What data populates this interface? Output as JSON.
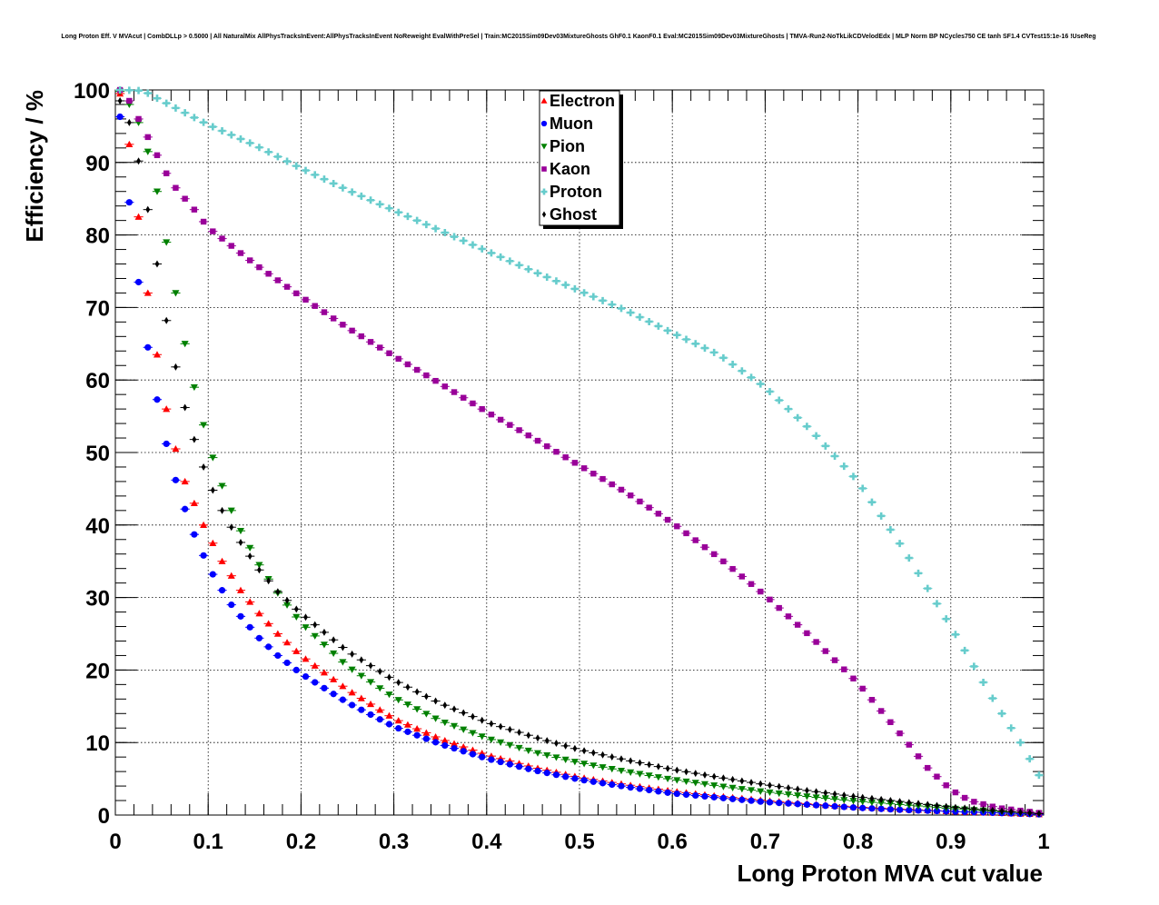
{
  "chart_data": {
    "type": "scatter",
    "title": "Long Proton Eff. V MVAcut | CombDLLp > 0.5000 | All NaturalMix AllPhysTracksInEvent:AllPhysTracksInEvent NoReweight EvalWithPreSel | Train:MC2015Sim09Dev03MixtureGhosts GhF0.1 KaonF0.1 Eval:MC2015Sim09Dev03MixtureGhosts | TMVA-Run2-NoTkLikCDVelodEdx | MLP Norm BP NCycles750 CE tanh SF1.4 CVTest15:1e-16 !UseReg",
    "xlabel": "Long Proton MVA cut value",
    "ylabel": "Efficiency / %",
    "xlim": [
      0,
      1
    ],
    "ylim": [
      0,
      100
    ],
    "grid": true,
    "legend_position": "top-center",
    "x_ticks": [
      "0",
      "0.1",
      "0.2",
      "0.3",
      "0.4",
      "0.5",
      "0.6",
      "0.7",
      "0.8",
      "0.9",
      "1"
    ],
    "y_ticks": [
      "0",
      "10",
      "20",
      "30",
      "40",
      "50",
      "60",
      "70",
      "80",
      "90",
      "100"
    ],
    "x_step": 0.01,
    "series": [
      {
        "name": "Electron",
        "color": "#ff0000",
        "marker": "triangle-up",
        "anchors": [
          [
            0.005,
            99.5
          ],
          [
            0.015,
            92.5
          ],
          [
            0.025,
            82.5
          ],
          [
            0.035,
            72
          ],
          [
            0.045,
            63.5
          ],
          [
            0.055,
            56
          ],
          [
            0.065,
            50.5
          ],
          [
            0.075,
            46
          ],
          [
            0.085,
            43
          ],
          [
            0.095,
            40
          ],
          [
            0.105,
            37.5
          ],
          [
            0.115,
            35
          ],
          [
            0.125,
            33
          ],
          [
            0.135,
            31
          ],
          [
            0.155,
            27.8
          ],
          [
            0.175,
            25
          ],
          [
            0.2,
            22
          ],
          [
            0.25,
            17.3
          ],
          [
            0.3,
            13.3
          ],
          [
            0.35,
            10.5
          ],
          [
            0.4,
            8.3
          ],
          [
            0.45,
            6.6
          ],
          [
            0.5,
            5.2
          ],
          [
            0.55,
            4.2
          ],
          [
            0.6,
            3.3
          ],
          [
            0.65,
            2.6
          ],
          [
            0.7,
            2.0
          ],
          [
            0.75,
            1.5
          ],
          [
            0.8,
            1.1
          ],
          [
            0.85,
            0.8
          ],
          [
            0.9,
            0.5
          ],
          [
            0.95,
            0.3
          ],
          [
            0.995,
            0.1
          ]
        ]
      },
      {
        "name": "Muon",
        "color": "#0000ff",
        "marker": "circle",
        "anchors": [
          [
            0.005,
            96.3
          ],
          [
            0.015,
            84.5
          ],
          [
            0.025,
            73.5
          ],
          [
            0.035,
            64.5
          ],
          [
            0.045,
            57.3
          ],
          [
            0.055,
            51.2
          ],
          [
            0.065,
            46.2
          ],
          [
            0.075,
            42.2
          ],
          [
            0.085,
            38.7
          ],
          [
            0.095,
            35.8
          ],
          [
            0.105,
            33.2
          ],
          [
            0.115,
            31
          ],
          [
            0.125,
            29
          ],
          [
            0.135,
            27.4
          ],
          [
            0.155,
            24.4
          ],
          [
            0.175,
            22
          ],
          [
            0.2,
            19.5
          ],
          [
            0.25,
            15.5
          ],
          [
            0.3,
            12.2
          ],
          [
            0.35,
            9.8
          ],
          [
            0.4,
            7.8
          ],
          [
            0.45,
            6.2
          ],
          [
            0.5,
            4.9
          ],
          [
            0.55,
            3.9
          ],
          [
            0.6,
            3.0
          ],
          [
            0.65,
            2.4
          ],
          [
            0.7,
            1.8
          ],
          [
            0.75,
            1.4
          ],
          [
            0.8,
            1.0
          ],
          [
            0.85,
            0.7
          ],
          [
            0.9,
            0.5
          ],
          [
            0.95,
            0.3
          ],
          [
            0.995,
            0.1
          ]
        ]
      },
      {
        "name": "Pion",
        "color": "#008000",
        "marker": "triangle-down",
        "anchors": [
          [
            0.005,
            99.8
          ],
          [
            0.015,
            98
          ],
          [
            0.025,
            95.5
          ],
          [
            0.035,
            91.5
          ],
          [
            0.045,
            86
          ],
          [
            0.055,
            79
          ],
          [
            0.065,
            72
          ],
          [
            0.075,
            65
          ],
          [
            0.085,
            59
          ],
          [
            0.095,
            53.8
          ],
          [
            0.105,
            49.3
          ],
          [
            0.115,
            45.4
          ],
          [
            0.125,
            42
          ],
          [
            0.135,
            39.2
          ],
          [
            0.155,
            34.5
          ],
          [
            0.175,
            30.6
          ],
          [
            0.2,
            26.5
          ],
          [
            0.25,
            20.5
          ],
          [
            0.3,
            16.2
          ],
          [
            0.35,
            13
          ],
          [
            0.4,
            10.6
          ],
          [
            0.45,
            8.7
          ],
          [
            0.5,
            7.2
          ],
          [
            0.55,
            6.0
          ],
          [
            0.6,
            4.9
          ],
          [
            0.65,
            4.0
          ],
          [
            0.7,
            3.2
          ],
          [
            0.75,
            2.5
          ],
          [
            0.8,
            1.9
          ],
          [
            0.85,
            1.4
          ],
          [
            0.9,
            0.9
          ],
          [
            0.95,
            0.5
          ],
          [
            0.995,
            0.2
          ]
        ]
      },
      {
        "name": "Kaon",
        "color": "#990099",
        "marker": "square",
        "anchors": [
          [
            0.005,
            100
          ],
          [
            0.015,
            98.5
          ],
          [
            0.025,
            96
          ],
          [
            0.035,
            93.5
          ],
          [
            0.045,
            91
          ],
          [
            0.055,
            88.5
          ],
          [
            0.065,
            86.5
          ],
          [
            0.075,
            85
          ],
          [
            0.085,
            83.5
          ],
          [
            0.1,
            81
          ],
          [
            0.15,
            76
          ],
          [
            0.2,
            71.5
          ],
          [
            0.25,
            67.2
          ],
          [
            0.3,
            63.3
          ],
          [
            0.35,
            59.5
          ],
          [
            0.4,
            55.6
          ],
          [
            0.45,
            52
          ],
          [
            0.5,
            48.2
          ],
          [
            0.55,
            44.5
          ],
          [
            0.6,
            40.3
          ],
          [
            0.65,
            35.5
          ],
          [
            0.7,
            30.3
          ],
          [
            0.75,
            24.5
          ],
          [
            0.8,
            18.2
          ],
          [
            0.85,
            10.5
          ],
          [
            0.875,
            6.5
          ],
          [
            0.9,
            3.5
          ],
          [
            0.92,
            2.0
          ],
          [
            0.95,
            1.0
          ],
          [
            0.995,
            0.3
          ]
        ]
      },
      {
        "name": "Proton",
        "color": "#66cccc",
        "marker": "cross",
        "anchors": [
          [
            0.005,
            100
          ],
          [
            0.03,
            99.9
          ],
          [
            0.05,
            98.5
          ],
          [
            0.1,
            95.2
          ],
          [
            0.15,
            92.4
          ],
          [
            0.2,
            89.2
          ],
          [
            0.25,
            86.2
          ],
          [
            0.3,
            83.4
          ],
          [
            0.35,
            80.6
          ],
          [
            0.4,
            77.8
          ],
          [
            0.45,
            75
          ],
          [
            0.5,
            72.3
          ],
          [
            0.55,
            69.6
          ],
          [
            0.6,
            66.5
          ],
          [
            0.65,
            63.5
          ],
          [
            0.7,
            59
          ],
          [
            0.75,
            53
          ],
          [
            0.8,
            46
          ],
          [
            0.85,
            36.5
          ],
          [
            0.9,
            26
          ],
          [
            0.95,
            15
          ],
          [
            0.975,
            10
          ],
          [
            0.995,
            5.5
          ]
        ]
      },
      {
        "name": "Ghost",
        "color": "#000000",
        "marker": "diamond",
        "anchors": [
          [
            0.005,
            98.5
          ],
          [
            0.015,
            95.5
          ],
          [
            0.025,
            90.2
          ],
          [
            0.035,
            83.5
          ],
          [
            0.045,
            76
          ],
          [
            0.055,
            68.2
          ],
          [
            0.065,
            61.8
          ],
          [
            0.075,
            56.2
          ],
          [
            0.085,
            51.8
          ],
          [
            0.095,
            48
          ],
          [
            0.105,
            44.8
          ],
          [
            0.115,
            42
          ],
          [
            0.125,
            39.7
          ],
          [
            0.135,
            37.6
          ],
          [
            0.155,
            33.8
          ],
          [
            0.175,
            30.8
          ],
          [
            0.2,
            27.8
          ],
          [
            0.25,
            22.6
          ],
          [
            0.3,
            18.6
          ],
          [
            0.35,
            15.4
          ],
          [
            0.4,
            12.8
          ],
          [
            0.45,
            10.8
          ],
          [
            0.5,
            9.0
          ],
          [
            0.55,
            7.6
          ],
          [
            0.6,
            6.3
          ],
          [
            0.65,
            5.2
          ],
          [
            0.7,
            4.2
          ],
          [
            0.75,
            3.3
          ],
          [
            0.8,
            2.5
          ],
          [
            0.85,
            1.8
          ],
          [
            0.9,
            1.1
          ],
          [
            0.95,
            0.6
          ],
          [
            0.995,
            0.2
          ]
        ]
      }
    ]
  }
}
